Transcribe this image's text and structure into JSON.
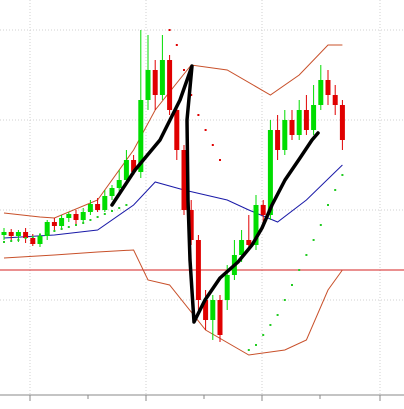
{
  "chart_data": {
    "type": "candlestick",
    "ylim": [
      5,
      400
    ],
    "up_color": "#00dd00",
    "down_color": "#e00000",
    "open": [
      165,
      168,
      164,
      168,
      162,
      156,
      164,
      178,
      174,
      182,
      186,
      180,
      188,
      196,
      190,
      204,
      212,
      220,
      240,
      228,
      300,
      330,
      305,
      340,
      290,
      250,
      190,
      160,
      100,
      80,
      100,
      100,
      125,
      145,
      160,
      155,
      195,
      185,
      270,
      250,
      280,
      265,
      290,
      270,
      295,
      320,
      305,
      295
    ],
    "high": [
      172,
      171,
      170,
      172,
      166,
      167,
      180,
      182,
      185,
      188,
      190,
      192,
      200,
      202,
      210,
      215,
      230,
      250,
      245,
      370,
      365,
      340,
      365,
      345,
      295,
      255,
      200,
      165,
      110,
      105,
      105,
      135,
      160,
      170,
      185,
      205,
      200,
      280,
      285,
      290,
      290,
      300,
      305,
      315,
      335,
      330,
      315,
      300
    ],
    "low": [
      160,
      160,
      158,
      157,
      154,
      153,
      160,
      170,
      171,
      178,
      176,
      178,
      185,
      188,
      188,
      200,
      208,
      215,
      225,
      222,
      290,
      290,
      300,
      285,
      240,
      185,
      155,
      90,
      70,
      60,
      58,
      90,
      120,
      138,
      150,
      150,
      175,
      180,
      240,
      245,
      260,
      260,
      265,
      265,
      290,
      295,
      285,
      250
    ],
    "close": [
      168,
      164,
      168,
      162,
      156,
      164,
      178,
      174,
      182,
      186,
      180,
      188,
      196,
      190,
      204,
      212,
      220,
      240,
      228,
      300,
      330,
      305,
      340,
      290,
      250,
      190,
      160,
      100,
      80,
      100,
      65,
      125,
      145,
      160,
      155,
      195,
      185,
      270,
      250,
      280,
      265,
      290,
      270,
      295,
      320,
      305,
      295,
      260
    ],
    "upper": {
      "color": "#c8502a",
      "x": [
        0,
        5,
        7,
        13,
        18,
        21,
        26,
        31,
        37,
        41,
        45,
        47
      ],
      "values": [
        187,
        183,
        182,
        200,
        250,
        290,
        335,
        330,
        305,
        325,
        355,
        355
      ]
    },
    "middle": {
      "color": "#1a1aa8",
      "x": [
        0,
        7,
        13,
        18,
        21,
        25,
        31,
        34,
        38,
        42,
        47
      ],
      "values": [
        162,
        165,
        170,
        195,
        218,
        210,
        200,
        190,
        178,
        200,
        235
      ]
    },
    "lower": {
      "color": "#c8502a",
      "x": [
        0,
        7,
        13,
        18,
        20,
        23,
        28,
        34,
        39,
        42,
        45,
        47
      ],
      "values": [
        142,
        145,
        148,
        150,
        120,
        115,
        70,
        45,
        50,
        60,
        110,
        130
      ]
    },
    "sar_up_1": {
      "color": "#22cc22",
      "x": [
        0,
        1,
        2,
        3,
        4,
        5,
        6,
        7,
        8,
        9,
        10,
        11,
        12,
        13,
        14,
        15,
        16,
        17
      ],
      "values": [
        158,
        159,
        160,
        162,
        163,
        165,
        167,
        169,
        171,
        173,
        175,
        177,
        180,
        183,
        186,
        189,
        192,
        195
      ]
    },
    "sar_down": {
      "color": "#e00000",
      "x": [
        23,
        24,
        25,
        26,
        27,
        28,
        29,
        30
      ],
      "values": [
        370,
        355,
        330,
        305,
        285,
        270,
        255,
        240
      ]
    },
    "sar_up_2": {
      "color": "#22cc22",
      "x": [
        34,
        35,
        36,
        37,
        38,
        39,
        40,
        41,
        42,
        43,
        44,
        45,
        46,
        47
      ],
      "values": [
        50,
        55,
        65,
        75,
        85,
        100,
        115,
        130,
        145,
        160,
        175,
        195,
        210,
        225
      ]
    },
    "hline": {
      "value": 130,
      "color": "#d42020"
    }
  }
}
